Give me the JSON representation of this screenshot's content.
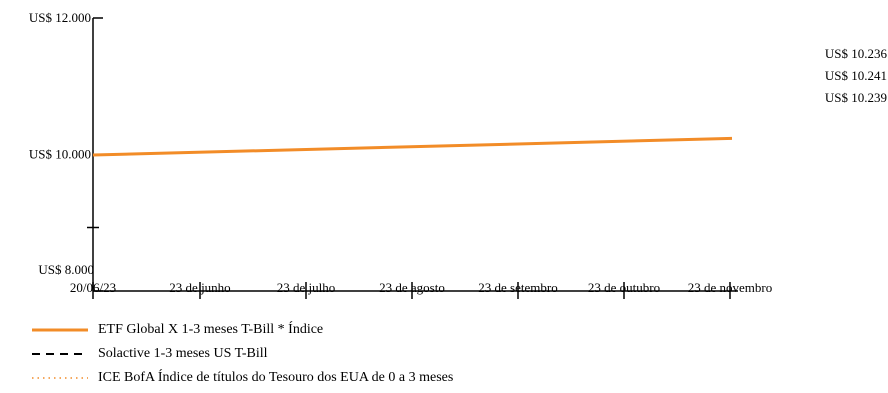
{
  "chart_data": {
    "type": "line",
    "title": "",
    "xlabel": "",
    "ylabel": "",
    "ylim": [
      8000,
      12000
    ],
    "y_ticks": [
      {
        "value": 12000,
        "label": "US$ 12.000"
      },
      {
        "value": 10000,
        "label": "US$ 10.000"
      },
      {
        "value": 8000,
        "label": "US$ 8.000"
      }
    ],
    "x_ticks": [
      {
        "x": "2023-06-20",
        "label": "20/06/23"
      },
      {
        "x": "2023-06-23",
        "label": "23 de junho"
      },
      {
        "x": "2023-07-23",
        "label": "23 de julho"
      },
      {
        "x": "2023-08-23",
        "label": "23 de agosto"
      },
      {
        "x": "2023-09-23",
        "label": "23 de setembro"
      },
      {
        "x": "2023-10-23",
        "label": "23 de outubro"
      },
      {
        "x": "2023-11-23",
        "label": "23 de novembro"
      }
    ],
    "series": [
      {
        "name": "ETF Global X 1-3 meses T-Bill * Índice",
        "color": "#f28c28",
        "style": "solid",
        "end_label": "US$ 10.236",
        "x": [
          "2023-06-20",
          "2023-11-30"
        ],
        "values": [
          10000,
          10236
        ]
      },
      {
        "name": "Solactive 1-3 meses US T-Bill",
        "color": "#000000",
        "style": "dashed",
        "end_label": "US$ 10.241",
        "x": [
          "2023-06-20",
          "2023-11-30"
        ],
        "values": [
          10000,
          10241
        ]
      },
      {
        "name": "ICE BofA Índice de títulos do Tesouro dos EUA de 0 a 3 meses",
        "color": "#f28c28",
        "style": "dotted",
        "end_label": "US$ 10.239",
        "x": [
          "2023-06-20",
          "2023-11-30"
        ],
        "values": [
          10000,
          10239
        ]
      }
    ],
    "grid": false,
    "legend_position": "bottom-left"
  }
}
